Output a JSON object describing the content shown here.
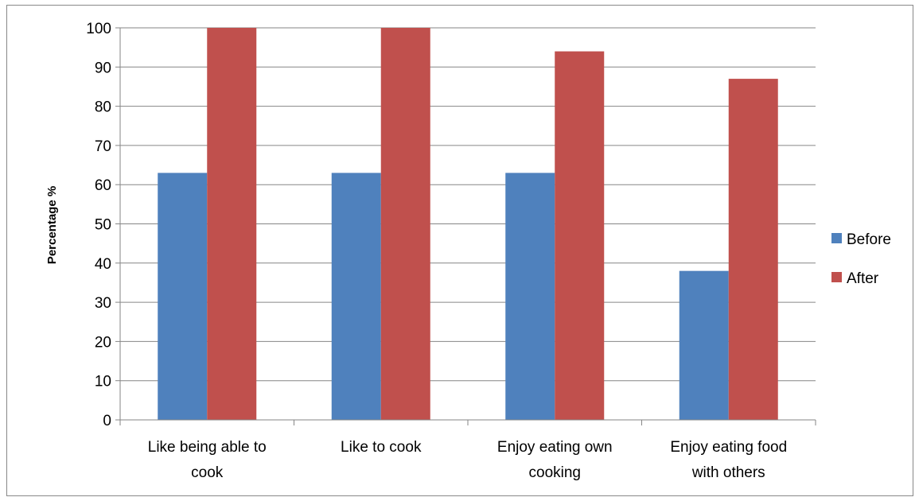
{
  "chart_data": {
    "type": "bar",
    "categories": [
      [
        "Like being  able to",
        "cook"
      ],
      [
        "Like to cook"
      ],
      [
        "Enjoy eating own",
        "cooking"
      ],
      [
        "Enjoy eating food",
        "with others"
      ]
    ],
    "series": [
      {
        "name": "Before",
        "color": "#4F81BD",
        "values": [
          63,
          63,
          63,
          38
        ]
      },
      {
        "name": "After",
        "color": "#C0504D",
        "values": [
          100,
          100,
          94,
          87
        ]
      }
    ],
    "title": "",
    "xlabel": "",
    "ylabel": "Percentage %",
    "ylim": [
      0,
      100
    ],
    "yticks": [
      0,
      10,
      20,
      30,
      40,
      50,
      60,
      70,
      80,
      90,
      100
    ],
    "grid": true,
    "legend": "right"
  }
}
